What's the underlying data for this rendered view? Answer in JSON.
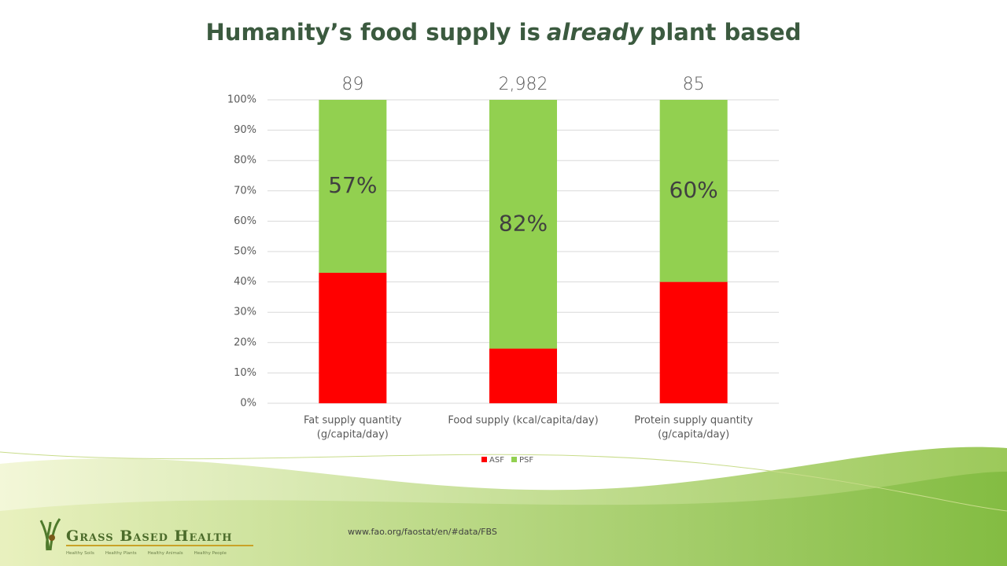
{
  "chart_data": {
    "type": "stacked_bar",
    "title": [
      "Humanity’s food supply is",
      "already",
      "plant based"
    ],
    "categories": [
      [
        "Fat supply quantity",
        "(g/capita/day)"
      ],
      [
        "Food supply (kcal/capita/day)"
      ],
      [
        "Protein supply quantity",
        "(g/capita/day)"
      ]
    ],
    "series": [
      {
        "name": "ASF",
        "color": "#ff0000",
        "values": [
          43,
          18,
          40
        ]
      },
      {
        "name": "PSF",
        "color": "#92d050",
        "values": [
          57,
          82,
          60
        ],
        "value_labels": [
          "57%",
          "82%",
          "60%"
        ]
      }
    ],
    "top_labels": [
      89,
      {
        "value": 2982,
        "label": "2,982"
      },
      85
    ],
    "ylim": [
      0,
      100
    ],
    "yticks": [
      {
        "value": 0,
        "label": "0%"
      },
      {
        "value": 10,
        "label": "10%"
      },
      {
        "value": 20,
        "label": "20%"
      },
      {
        "value": 30,
        "label": "30%"
      },
      {
        "value": 40,
        "label": "40%"
      },
      {
        "value": 50,
        "label": "50%"
      },
      {
        "value": 60,
        "label": "60%"
      },
      {
        "value": 70,
        "label": "70%"
      },
      {
        "value": 80,
        "label": "80%"
      },
      {
        "value": 90,
        "label": "90%"
      },
      {
        "value": 100,
        "label": "100%"
      }
    ],
    "grid": true,
    "legend": "bottom"
  },
  "footer": {
    "source": "www.fao.org/faostat/en/#data/FBS",
    "logo": "Grass Based Health",
    "tagline": [
      "Healthy Soils",
      "Healthy Plants",
      "Healthy Animals",
      "Healthy People"
    ]
  }
}
